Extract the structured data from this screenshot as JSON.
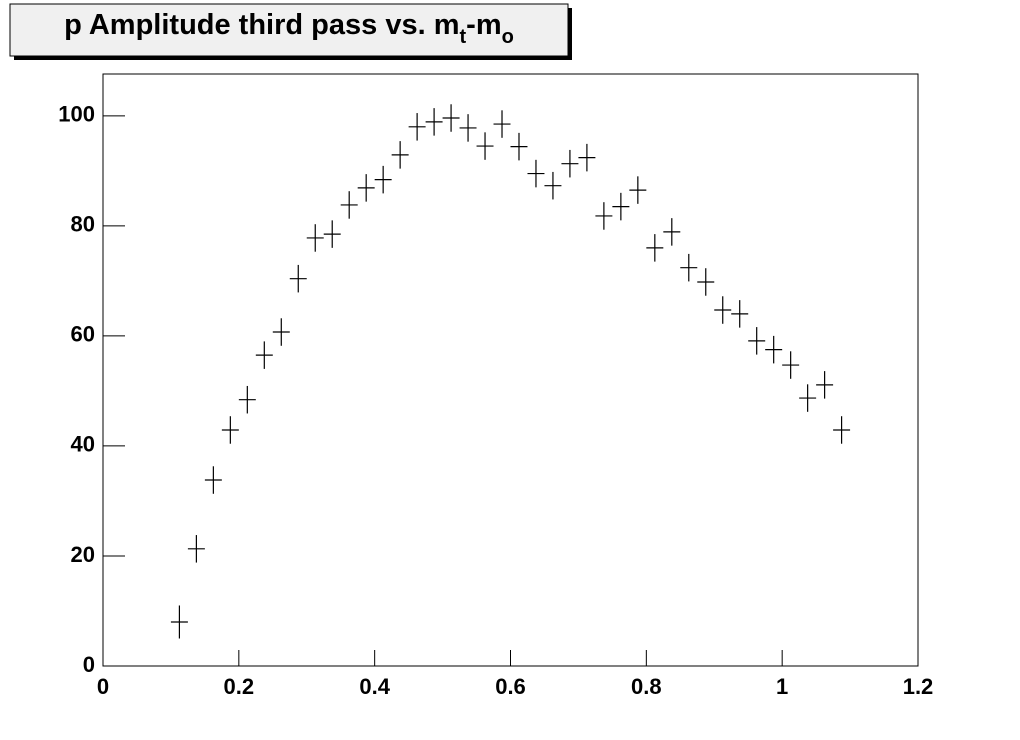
{
  "chart_data": {
    "type": "errorbar",
    "title": {
      "main": "p Amplitude third pass vs. m",
      "sub1": "t",
      "mid": "-m",
      "sub2": "o"
    },
    "x": [
      0.1125,
      0.1375,
      0.1625,
      0.1875,
      0.2125,
      0.2375,
      0.2625,
      0.2875,
      0.3125,
      0.3375,
      0.3625,
      0.3875,
      0.4125,
      0.4375,
      0.4625,
      0.4875,
      0.5125,
      0.5375,
      0.5625,
      0.5875,
      0.6125,
      0.6375,
      0.6625,
      0.6875,
      0.7125,
      0.7375,
      0.7625,
      0.7875,
      0.8125,
      0.8375,
      0.8625,
      0.8875,
      0.9125,
      0.9375,
      0.9625,
      0.9875,
      1.0125,
      1.0375,
      1.0625,
      1.0875
    ],
    "values": [
      8,
      21.3,
      33.8,
      42.9,
      48.4,
      56.5,
      60.7,
      70.4,
      77.8,
      78.5,
      83.8,
      86.9,
      88.4,
      92.9,
      98,
      98.9,
      99.6,
      97.8,
      94.5,
      98.5,
      94.4,
      89.5,
      87.3,
      91.3,
      92.4,
      81.8,
      83.5,
      86.5,
      76,
      78.9,
      72.4,
      69.8,
      64.7,
      64,
      59.1,
      57.5,
      54.7,
      48.7,
      51.1,
      42.9
    ],
    "errors": [
      3,
      2.5,
      2.5,
      2.5,
      2.5,
      2.5,
      2.5,
      2.5,
      2.5,
      2.5,
      2.5,
      2.5,
      2.5,
      2.5,
      2.5,
      2.5,
      2.5,
      2.5,
      2.5,
      2.5,
      2.5,
      2.5,
      2.5,
      2.5,
      2.5,
      2.5,
      2.5,
      2.5,
      2.5,
      2.5,
      2.5,
      2.5,
      2.5,
      2.5,
      2.5,
      2.5,
      2.5,
      2.5,
      2.5,
      2.5
    ],
    "color": "#000000",
    "xlim": [
      0,
      1.2
    ],
    "xticks": [
      0,
      0.2,
      0.4,
      0.6,
      0.8,
      1,
      1.2
    ],
    "ylim": [
      0,
      107.6
    ],
    "yticks": [
      0,
      20,
      40,
      60,
      80,
      100
    ]
  }
}
